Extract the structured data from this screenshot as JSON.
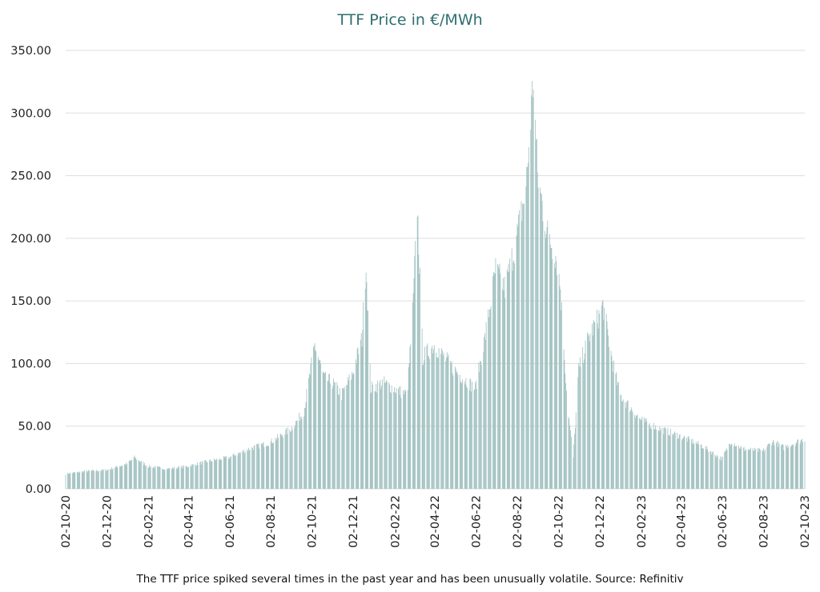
{
  "chart_data": {
    "type": "bar",
    "title": "TTF Price in €/MWh",
    "caption": "The TTF price spiked several times in the past year and has been unusually volatile. Source: Refinitiv",
    "xlabel": "",
    "ylabel": "",
    "ylim": [
      0,
      350
    ],
    "grid": true,
    "bar_color": "#9fbfbf",
    "grid_color": "#dddddd",
    "title_color": "#2f6f70",
    "y_ticks": [
      "0.00",
      "50.00",
      "100.00",
      "150.00",
      "200.00",
      "250.00",
      "300.00",
      "350.00"
    ],
    "x_ticks": [
      "02-10-20",
      "02-12-20",
      "02-02-21",
      "02-04-21",
      "02-06-21",
      "02-08-21",
      "02-10-21",
      "02-12-21",
      "02-02-22",
      "02-04-22",
      "02-06-22",
      "02-08-22",
      "02-10-22",
      "02-12-22",
      "02-02-23",
      "02-04-23",
      "02-06-23",
      "02-08-23",
      "02-10-23"
    ],
    "series": [
      {
        "x_start": "2020-10-02",
        "x_end": "2023-10-02",
        "key_points": [
          [
            "2020-10-02",
            12
          ],
          [
            "2020-11-01",
            14
          ],
          [
            "2020-12-01",
            15
          ],
          [
            "2021-01-01",
            20
          ],
          [
            "2021-01-12",
            25
          ],
          [
            "2021-02-01",
            18
          ],
          [
            "2021-03-01",
            16
          ],
          [
            "2021-04-01",
            18
          ],
          [
            "2021-05-01",
            22
          ],
          [
            "2021-06-01",
            25
          ],
          [
            "2021-07-01",
            32
          ],
          [
            "2021-08-01",
            37
          ],
          [
            "2021-09-01",
            48
          ],
          [
            "2021-09-20",
            62
          ],
          [
            "2021-10-06",
            115
          ],
          [
            "2021-10-20",
            88
          ],
          [
            "2021-11-01",
            85
          ],
          [
            "2021-11-15",
            75
          ],
          [
            "2021-12-01",
            92
          ],
          [
            "2021-12-15",
            120
          ],
          [
            "2021-12-21",
            182
          ],
          [
            "2021-12-28",
            80
          ],
          [
            "2022-01-15",
            85
          ],
          [
            "2022-02-01",
            80
          ],
          [
            "2022-02-20",
            75
          ],
          [
            "2022-03-01",
            150
          ],
          [
            "2022-03-07",
            227
          ],
          [
            "2022-03-15",
            105
          ],
          [
            "2022-04-01",
            115
          ],
          [
            "2022-05-01",
            95
          ],
          [
            "2022-06-01",
            80
          ],
          [
            "2022-06-15",
            120
          ],
          [
            "2022-07-01",
            175
          ],
          [
            "2022-07-15",
            160
          ],
          [
            "2022-08-01",
            200
          ],
          [
            "2022-08-15",
            240
          ],
          [
            "2022-08-26",
            330
          ],
          [
            "2022-09-01",
            250
          ],
          [
            "2022-09-15",
            205
          ],
          [
            "2022-09-29",
            185
          ],
          [
            "2022-10-05",
            160
          ],
          [
            "2022-10-15",
            70
          ],
          [
            "2022-10-24",
            25
          ],
          [
            "2022-11-01",
            95
          ],
          [
            "2022-11-15",
            120
          ],
          [
            "2022-12-01",
            138
          ],
          [
            "2022-12-07",
            147
          ],
          [
            "2022-12-20",
            105
          ],
          [
            "2023-01-01",
            75
          ],
          [
            "2023-02-01",
            55
          ],
          [
            "2023-03-01",
            48
          ],
          [
            "2023-04-01",
            42
          ],
          [
            "2023-05-01",
            35
          ],
          [
            "2023-06-01",
            24
          ],
          [
            "2023-06-15",
            38
          ],
          [
            "2023-07-01",
            32
          ],
          [
            "2023-08-01",
            30
          ],
          [
            "2023-08-15",
            38
          ],
          [
            "2023-09-01",
            33
          ],
          [
            "2023-10-02",
            40
          ]
        ]
      }
    ]
  }
}
